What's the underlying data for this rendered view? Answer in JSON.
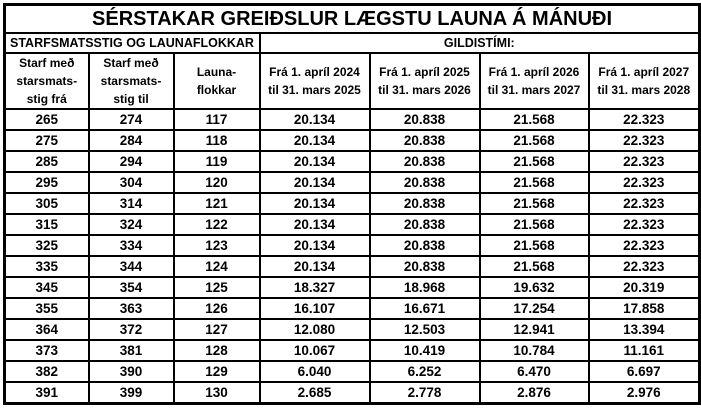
{
  "title": "SÉRSTAKAR GREIÐSLUR LÆGSTU LAUNA Á MÁNUÐI",
  "sections": {
    "left": "STARFSMATSSTIG OG LAUNAFLOKKAR",
    "right": "GILDISTÍMI:"
  },
  "table": {
    "columns": [
      {
        "name": "starfsmatsstig-fra",
        "lines": [
          "Starf með",
          "starsmats-",
          "stig frá"
        ]
      },
      {
        "name": "starfsmatsstig-til",
        "lines": [
          "Starf með",
          "starsmats-",
          "stig til"
        ]
      },
      {
        "name": "launaflokkar",
        "lines": [
          "Launa-",
          "flokkar"
        ]
      },
      {
        "name": "period-2024-2025",
        "lines": [
          "Frá 1. apríl 2024",
          "til 31. mars 2025"
        ]
      },
      {
        "name": "period-2025-2026",
        "lines": [
          "Frá 1. apríl 2025",
          "til 31. mars 2026"
        ]
      },
      {
        "name": "period-2026-2027",
        "lines": [
          "Frá 1. apríl 2026",
          "til 31. mars 2027"
        ]
      },
      {
        "name": "period-2027-2028",
        "lines": [
          "Frá 1. apríl 2027",
          "til 31. mars 2028"
        ]
      }
    ],
    "rows": [
      [
        "265",
        "274",
        "117",
        "20.134",
        "20.838",
        "21.568",
        "22.323"
      ],
      [
        "275",
        "284",
        "118",
        "20.134",
        "20.838",
        "21.568",
        "22.323"
      ],
      [
        "285",
        "294",
        "119",
        "20.134",
        "20.838",
        "21.568",
        "22.323"
      ],
      [
        "295",
        "304",
        "120",
        "20.134",
        "20.838",
        "21.568",
        "22.323"
      ],
      [
        "305",
        "314",
        "121",
        "20.134",
        "20.838",
        "21.568",
        "22.323"
      ],
      [
        "315",
        "324",
        "122",
        "20.134",
        "20.838",
        "21.568",
        "22.323"
      ],
      [
        "325",
        "334",
        "123",
        "20.134",
        "20.838",
        "21.568",
        "22.323"
      ],
      [
        "335",
        "344",
        "124",
        "20.134",
        "20.838",
        "21.568",
        "22.323"
      ],
      [
        "345",
        "354",
        "125",
        "18.327",
        "18.968",
        "19.632",
        "20.319"
      ],
      [
        "355",
        "363",
        "126",
        "16.107",
        "16.671",
        "17.254",
        "17.858"
      ],
      [
        "364",
        "372",
        "127",
        "12.080",
        "12.503",
        "12.941",
        "13.394"
      ],
      [
        "373",
        "381",
        "128",
        "10.067",
        "10.419",
        "10.784",
        "11.161"
      ],
      [
        "382",
        "390",
        "129",
        "6.040",
        "6.252",
        "6.470",
        "6.697"
      ],
      [
        "391",
        "399",
        "130",
        "2.685",
        "2.778",
        "2.876",
        "2.976"
      ]
    ]
  },
  "colors": {
    "border": "#000000",
    "text": "#000000",
    "background": "#ffffff"
  }
}
